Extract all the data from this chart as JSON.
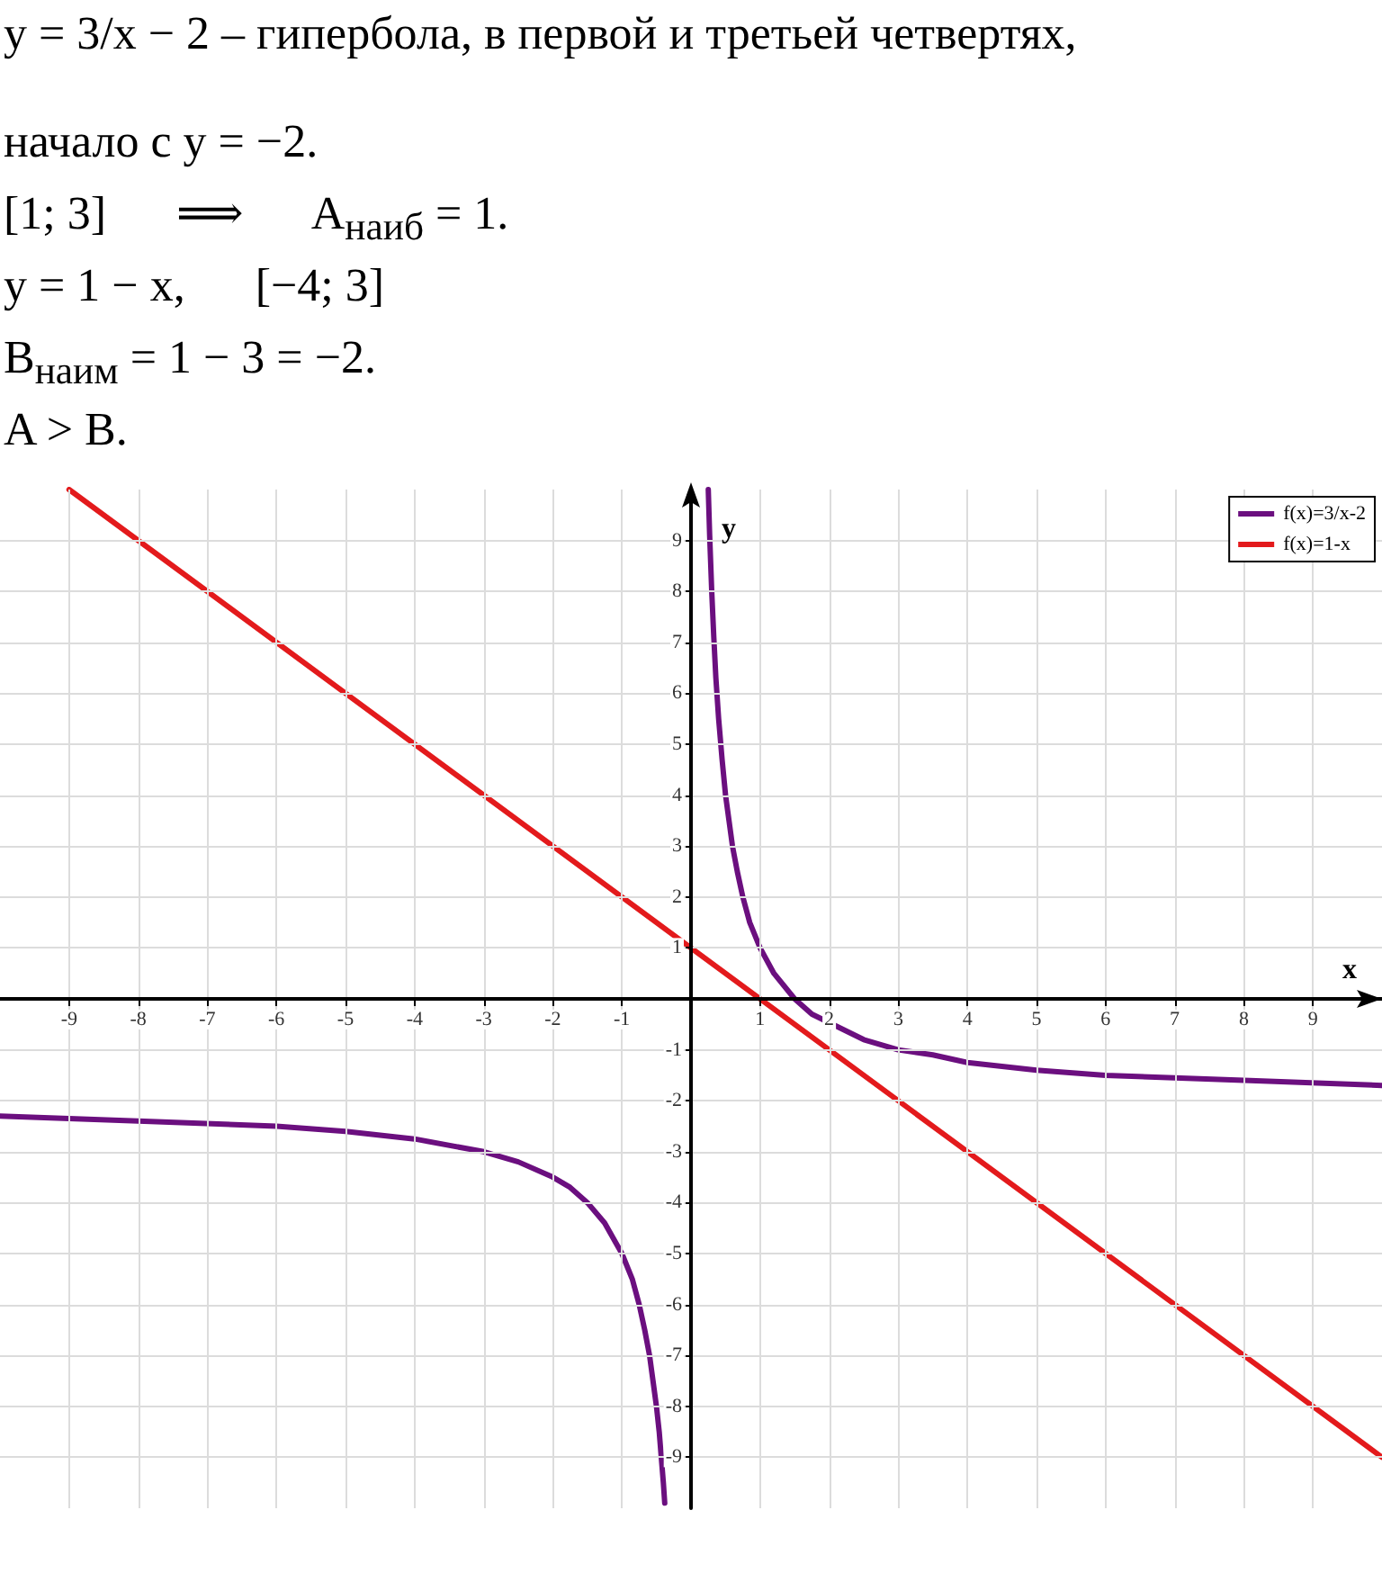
{
  "chart_data": {
    "type": "line",
    "xlabel": "x",
    "ylabel": "y",
    "annotations": [
      "y = 3/x − 2 – гипербола, в первой и третьей четвертях,",
      "начало с y = −2.",
      "[1; 3]      ⟹      A$_{наиб}$ = 1.",
      "y = 1 − x,      [−4; 3]",
      "B$_{наим}$ = 1 − 3 = −2.",
      "A > B."
    ],
    "xlim": [
      -10,
      10
    ],
    "ylim": [
      -10,
      10
    ],
    "xticks": [
      -9,
      -8,
      -7,
      -6,
      -5,
      -4,
      -3,
      -2,
      -1,
      1,
      2,
      3,
      4,
      5,
      6,
      7,
      8,
      9
    ],
    "yticks": [
      -9,
      -8,
      -7,
      -6,
      -5,
      -4,
      -3,
      -2,
      -1,
      1,
      2,
      3,
      4,
      5,
      6,
      7,
      8,
      9
    ],
    "grid": true,
    "legend": "top right",
    "marker": "none",
    "line_style": "solid",
    "series": [
      {
        "name": "f(x)=3/x-2",
        "color": "#6b0f7f",
        "x": [
          -10,
          -8,
          -6,
          -5,
          -4,
          -3,
          -2.5,
          -2,
          -1.75,
          -1.5,
          -1.25,
          -1,
          -0.85,
          -0.75,
          -0.67,
          -0.6,
          -0.55,
          -0.5,
          -0.46,
          -0.43,
          -0.4,
          -0.38,
          0,
          0.25,
          0.27,
          0.3,
          0.33,
          0.36,
          0.4,
          0.45,
          0.5,
          0.55,
          0.6,
          0.67,
          0.75,
          0.85,
          1,
          1.2,
          1.5,
          1.75,
          2.5,
          3,
          3.5,
          4,
          5,
          6,
          8,
          10
        ],
        "values": [
          -2.3,
          -2.4,
          -2.5,
          -2.6,
          -2.75,
          -3,
          -3.2,
          -3.5,
          -3.7,
          -4,
          -4.4,
          -5,
          -5.5,
          -6,
          -6.5,
          -7,
          -7.5,
          -8,
          -8.5,
          -9,
          -9.5,
          -9.9,
          null,
          10,
          9.1,
          8,
          7.1,
          6.3,
          5.5,
          4.7,
          4,
          3.5,
          3,
          2.5,
          2,
          1.5,
          1,
          0.5,
          0,
          -0.3,
          -0.8,
          -1,
          -1.1,
          -1.25,
          -1.4,
          -1.5,
          -1.6,
          -1.7
        ]
      },
      {
        "name": "f(x)=1-x",
        "color": "#e31a1c",
        "x": [
          -9,
          10
        ],
        "values": [
          10,
          -9
        ]
      }
    ]
  }
}
